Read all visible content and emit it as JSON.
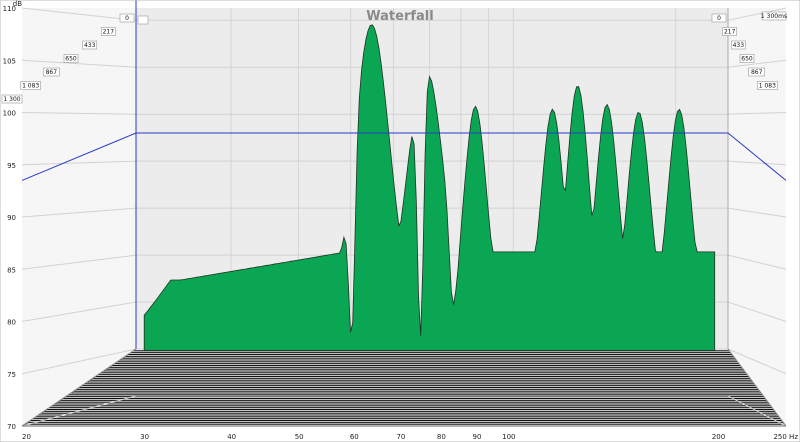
{
  "chart_data": {
    "type": "area",
    "title": "Waterfall",
    "xlabel_unit": "Hz",
    "ylabel_unit": "dB",
    "time_unit": "ms",
    "x_scale": "log",
    "xlim": [
      20,
      250
    ],
    "ylim": [
      70,
      110
    ],
    "x_ticks": [
      {
        "value": 20,
        "label": "20"
      },
      {
        "value": 30,
        "label": "30"
      },
      {
        "value": 40,
        "label": "40"
      },
      {
        "value": 50,
        "label": "50"
      },
      {
        "value": 60,
        "label": "60"
      },
      {
        "value": 70,
        "label": "70"
      },
      {
        "value": 80,
        "label": "80"
      },
      {
        "value": 90,
        "label": "90"
      },
      {
        "value": 100,
        "label": "100"
      },
      {
        "value": 200,
        "label": "200"
      },
      {
        "value": 250,
        "label": "250 Hz"
      }
    ],
    "y_ticks": [
      {
        "value": 110,
        "label": "110"
      },
      {
        "value": 105,
        "label": "105"
      },
      {
        "value": 100,
        "label": "100"
      },
      {
        "value": 95,
        "label": "95"
      },
      {
        "value": 90,
        "label": "90"
      },
      {
        "value": 85,
        "label": "85"
      },
      {
        "value": 80,
        "label": "80"
      },
      {
        "value": 75,
        "label": "75"
      },
      {
        "value": 70,
        "label": "70"
      }
    ],
    "y_unit_label": "dB",
    "time_labels_left": [
      "0",
      "217",
      "433",
      "650",
      "867",
      "1 083",
      "1 300"
    ],
    "time_labels_right": [
      "0",
      "217",
      "433",
      "650",
      "867",
      "1 083",
      "1 300ms"
    ],
    "cursor_level_db": 98,
    "grid": true,
    "fill_color": "#0aa653",
    "line_color": "#1e3324",
    "cursor_color": "#2b39c8",
    "slices_count": 14,
    "peaks": [
      {
        "freq_hz": 55.5,
        "level_db": 108.2
      },
      {
        "freq_hz": 69.5,
        "level_db": 103.7
      },
      {
        "freq_hz": 85.5,
        "level_db": 99.5
      },
      {
        "freq_hz": 118,
        "level_db": 99.2
      },
      {
        "freq_hz": 131,
        "level_db": 101.7
      },
      {
        "freq_hz": 148,
        "level_db": 99.7
      },
      {
        "freq_hz": 169,
        "level_db": 98.9
      },
      {
        "freq_hz": 200,
        "level_db": 99.2
      }
    ],
    "notches": [
      {
        "freq_hz": 51,
        "level_db": 75.8
      },
      {
        "freq_hz": 68,
        "level_db": 75.5
      },
      {
        "freq_hz": 78,
        "level_db": 80
      }
    ],
    "low_frequency_start_level_db": 84
  }
}
